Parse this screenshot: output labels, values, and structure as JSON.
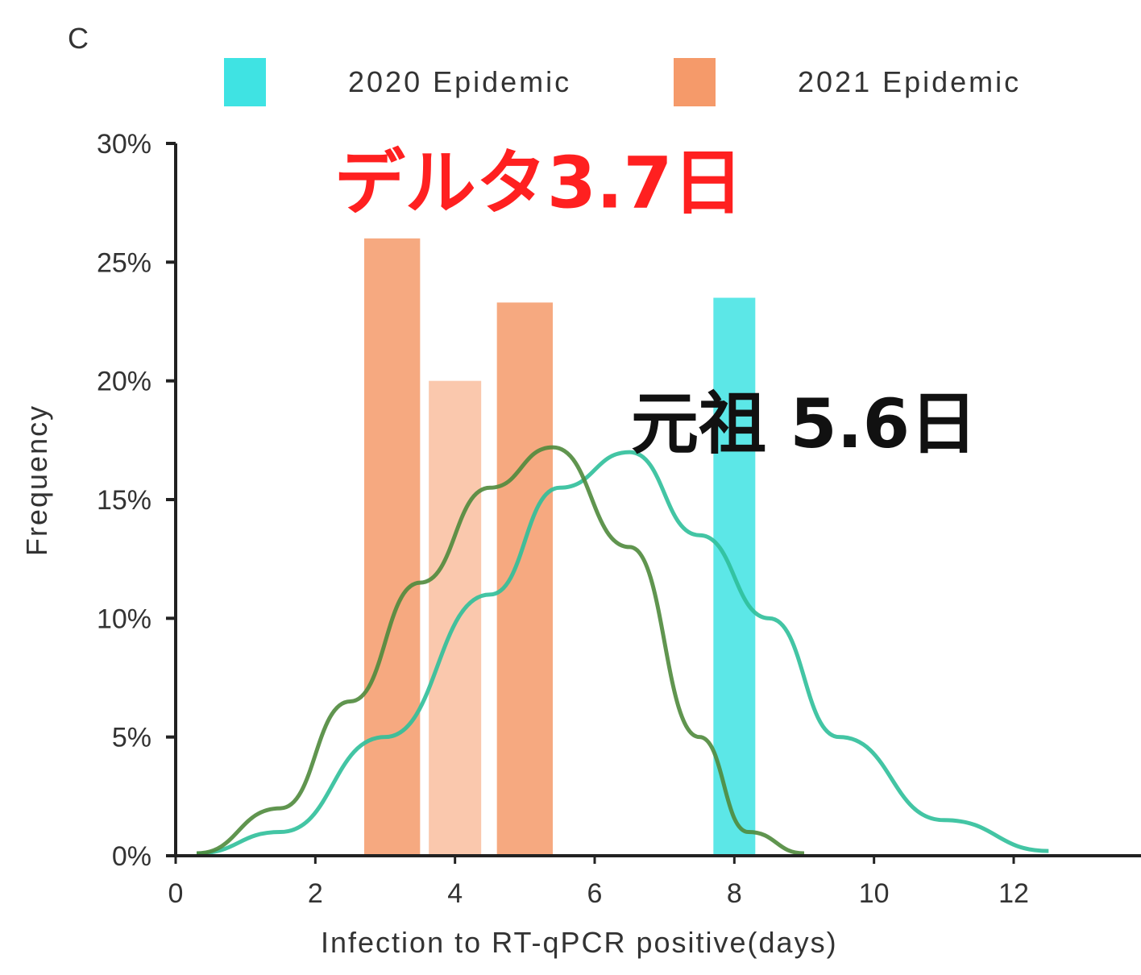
{
  "chart_data": {
    "type": "bar",
    "panel_label": "C",
    "xlabel": "Infection to RT-qPCR positive(days)",
    "ylabel": "Frequency",
    "xlim": [
      0,
      13.5
    ],
    "ylim": [
      0,
      30
    ],
    "x_ticks": [
      0,
      2,
      4,
      6,
      8,
      10,
      12
    ],
    "y_ticks": [
      {
        "value": 0,
        "label": "0%"
      },
      {
        "value": 5,
        "label": "5%"
      },
      {
        "value": 10,
        "label": "10%"
      },
      {
        "value": 15,
        "label": "15%"
      },
      {
        "value": 20,
        "label": "20%"
      },
      {
        "value": 25,
        "label": "25%"
      },
      {
        "value": 30,
        "label": "30%"
      }
    ],
    "legend_placement": "top",
    "series": [
      {
        "name": "2020 Epidemic",
        "color": "#3fe3e3",
        "bars": [
          {
            "x": 8.0,
            "width": 0.6,
            "value": 23.5
          }
        ],
        "curve_color": "#2fbf9a",
        "curve": [
          [
            0.3,
            0.1
          ],
          [
            1.5,
            1.0
          ],
          [
            3.0,
            5.0
          ],
          [
            4.5,
            11.0
          ],
          [
            5.5,
            15.5
          ],
          [
            6.5,
            17.0
          ],
          [
            7.5,
            13.5
          ],
          [
            8.5,
            10.0
          ],
          [
            9.5,
            5.0
          ],
          [
            11.0,
            1.5
          ],
          [
            12.5,
            0.2
          ]
        ]
      },
      {
        "name": "2021 Epidemic",
        "color": "#f59a6a",
        "bars": [
          {
            "x": 3.1,
            "width": 0.8,
            "value": 26.0
          },
          {
            "x": 4.0,
            "width": 0.75,
            "value": 20.0
          },
          {
            "x": 5.0,
            "width": 0.8,
            "value": 23.3
          }
        ],
        "curve_color": "#4f8a3c",
        "curve": [
          [
            0.3,
            0.1
          ],
          [
            1.5,
            2.0
          ],
          [
            2.5,
            6.5
          ],
          [
            3.5,
            11.5
          ],
          [
            4.5,
            15.5
          ],
          [
            5.4,
            17.2
          ],
          [
            6.5,
            13.0
          ],
          [
            7.5,
            5.0
          ],
          [
            8.2,
            1.0
          ],
          [
            9.0,
            0.1
          ]
        ]
      }
    ],
    "annotations": [
      {
        "text": "デルタ3.7日",
        "color": "#ff2020",
        "x": 5.2,
        "y": 27.3
      },
      {
        "text": "元祖 5.6日",
        "color": "#111111",
        "x": 9.0,
        "y": 17.2
      }
    ]
  }
}
